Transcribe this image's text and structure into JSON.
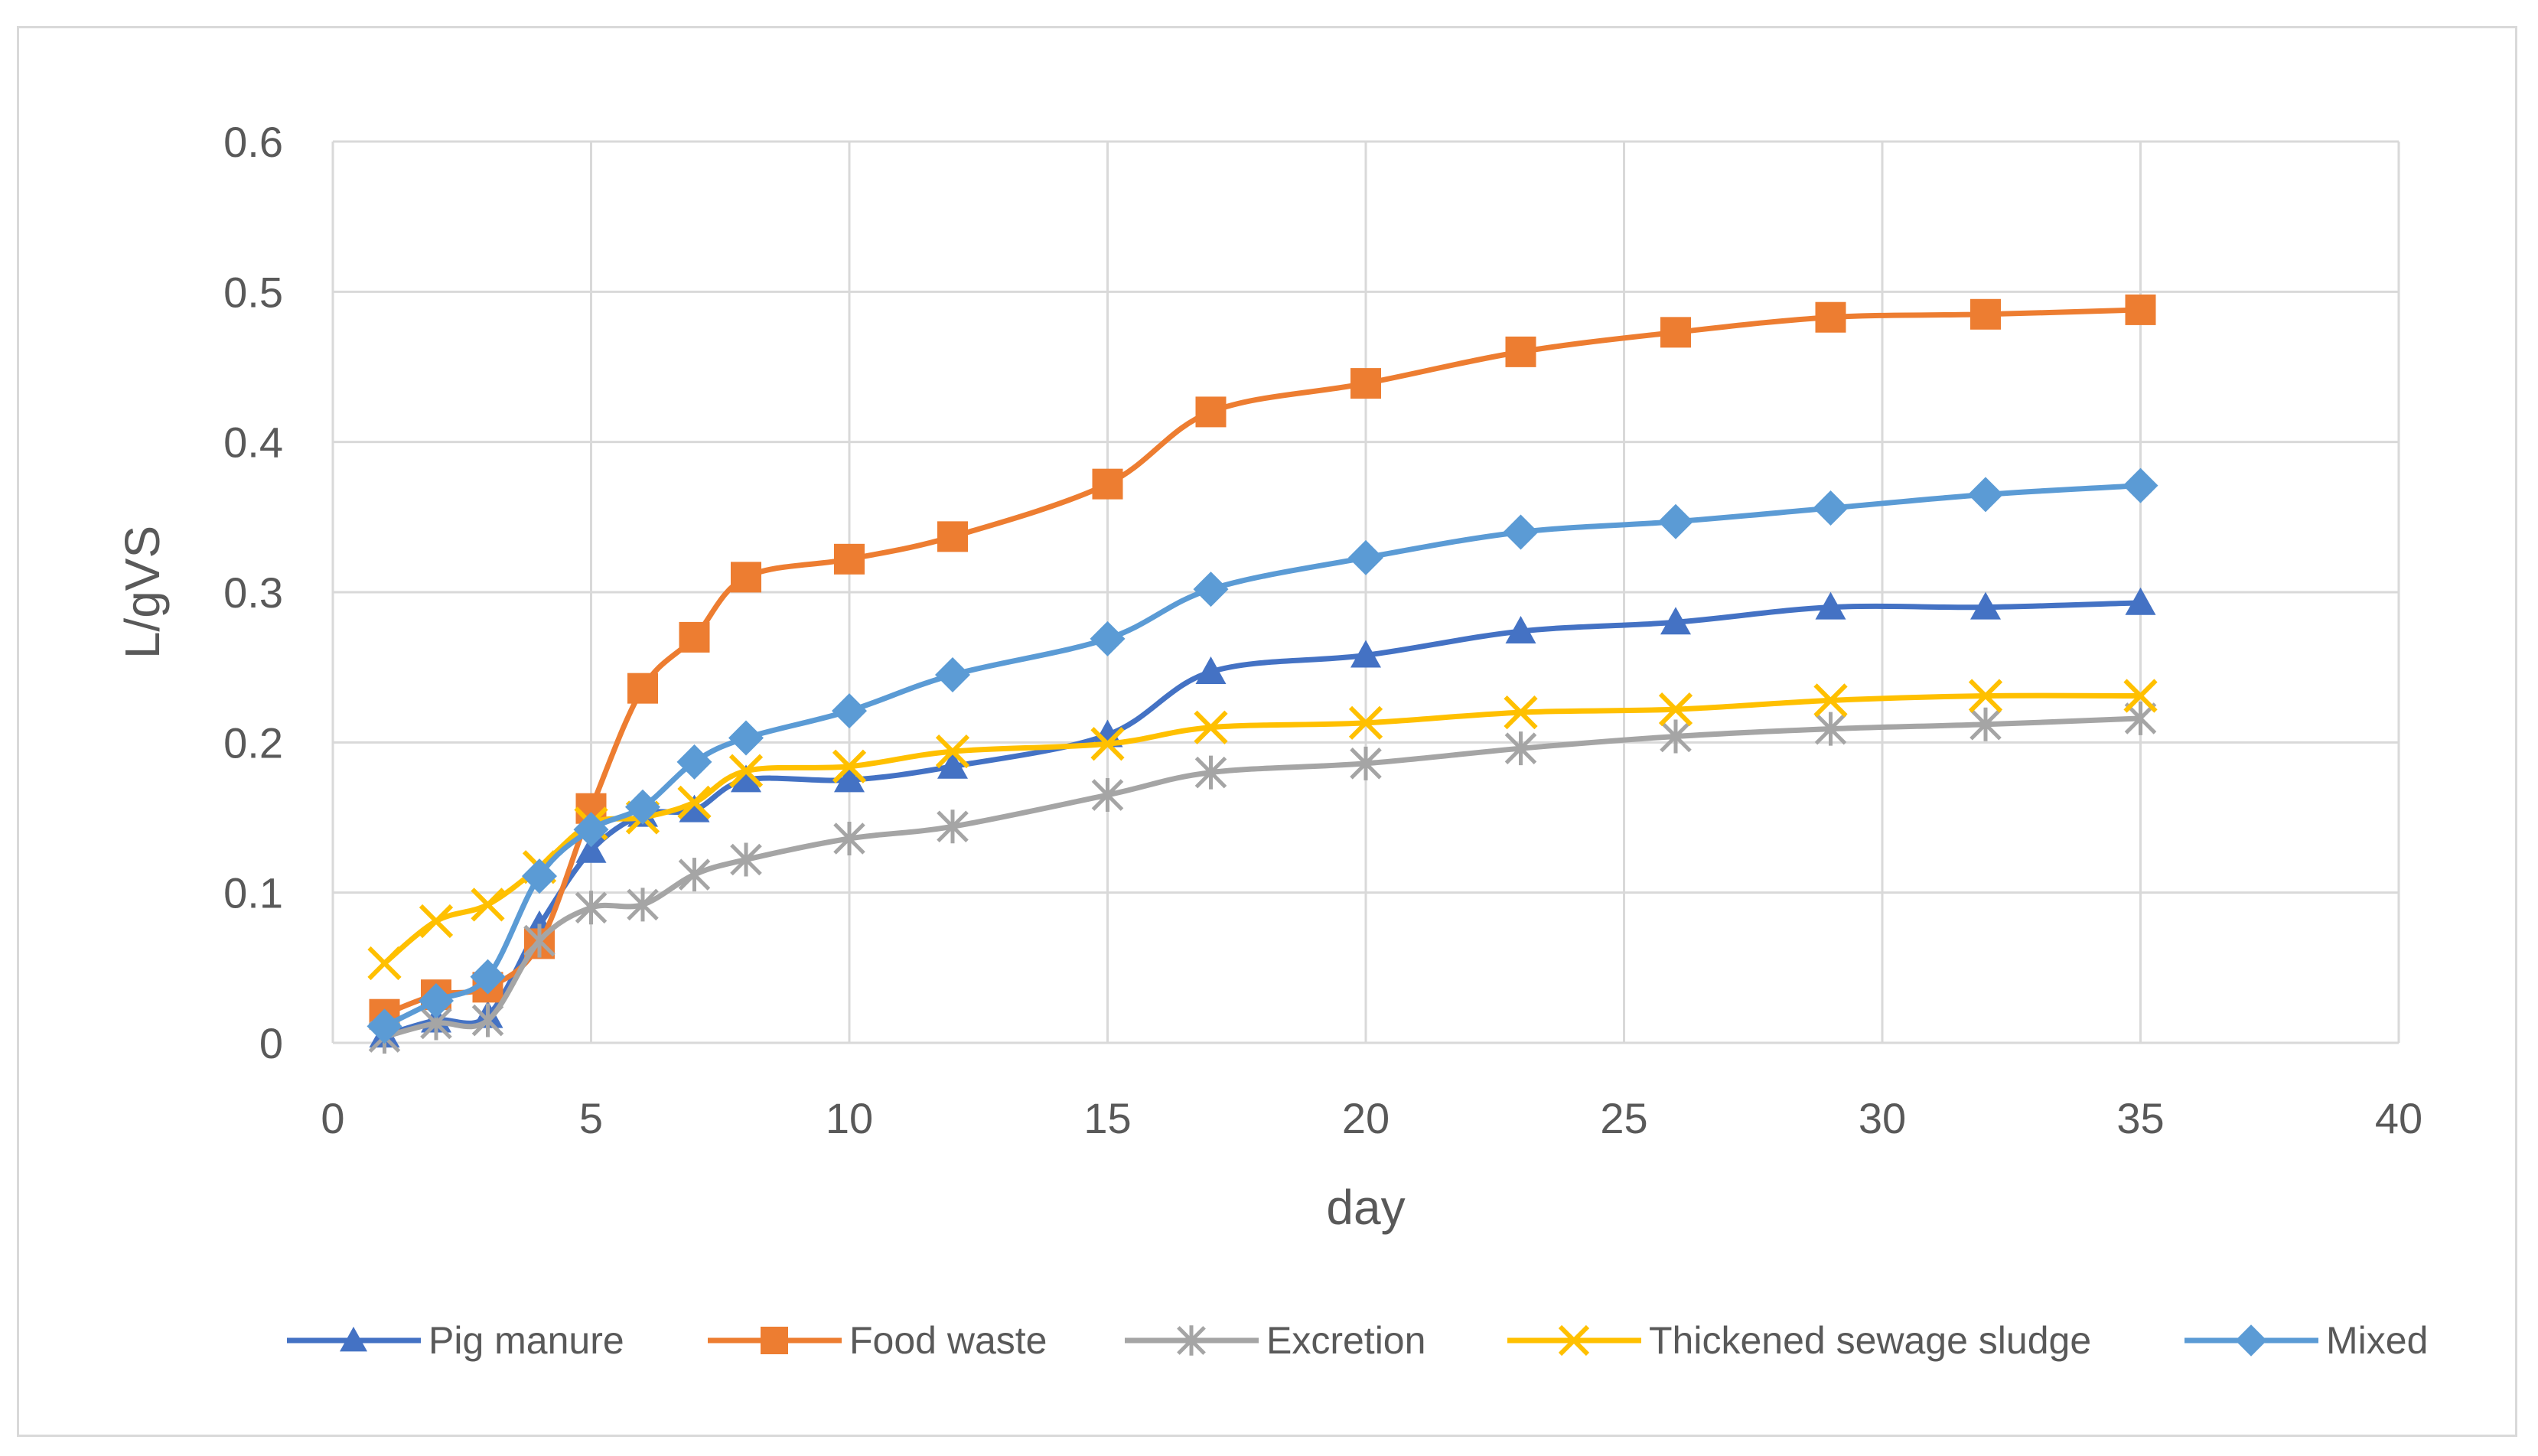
{
  "chart_data": {
    "type": "line",
    "title": "",
    "xlabel": "day",
    "ylabel": "L/gVS",
    "xlim": [
      0,
      40
    ],
    "ylim": [
      0,
      0.6
    ],
    "x_ticks": [
      "0",
      "5",
      "10",
      "15",
      "20",
      "25",
      "30",
      "35",
      "40"
    ],
    "y_ticks": [
      "0",
      "0.1",
      "0.2",
      "0.3",
      "0.4",
      "0.5",
      "0.6"
    ],
    "grid": true,
    "legend_position": "bottom",
    "x": [
      1,
      2,
      3,
      4,
      5,
      6,
      7,
      8,
      10,
      12,
      15,
      17,
      20,
      23,
      26,
      29,
      32,
      35
    ],
    "series": [
      {
        "name": "Pig manure",
        "color": "#4472c4",
        "marker": "triangle",
        "values": [
          0.005,
          0.015,
          0.018,
          0.078,
          0.128,
          0.152,
          0.155,
          0.175,
          0.175,
          0.184,
          0.205,
          0.247,
          0.258,
          0.274,
          0.28,
          0.29,
          0.29,
          0.293
        ]
      },
      {
        "name": "Food waste",
        "color": "#ed7d31",
        "marker": "square",
        "values": [
          0.019,
          0.032,
          0.037,
          0.066,
          0.156,
          0.236,
          0.27,
          0.31,
          0.322,
          0.337,
          0.372,
          0.42,
          0.439,
          0.46,
          0.473,
          0.483,
          0.485,
          0.488
        ]
      },
      {
        "name": "Excretion",
        "color": "#a5a5a5",
        "marker": "asterisk",
        "values": [
          0.004,
          0.013,
          0.015,
          0.068,
          0.09,
          0.092,
          0.112,
          0.122,
          0.136,
          0.144,
          0.165,
          0.18,
          0.186,
          0.196,
          0.204,
          0.209,
          0.212,
          0.216
        ]
      },
      {
        "name": "Thickened sewage sludge",
        "color": "#ffc000",
        "marker": "x",
        "values": [
          0.053,
          0.081,
          0.092,
          0.117,
          0.146,
          0.15,
          0.16,
          0.181,
          0.184,
          0.194,
          0.199,
          0.21,
          0.213,
          0.22,
          0.222,
          0.228,
          0.231,
          0.231
        ]
      },
      {
        "name": "Mixed",
        "color": "#5b9bd5",
        "marker": "diamond",
        "values": [
          0.011,
          0.028,
          0.044,
          0.111,
          0.142,
          0.157,
          0.187,
          0.203,
          0.221,
          0.245,
          0.269,
          0.302,
          0.323,
          0.34,
          0.347,
          0.356,
          0.365,
          0.371
        ]
      }
    ]
  }
}
